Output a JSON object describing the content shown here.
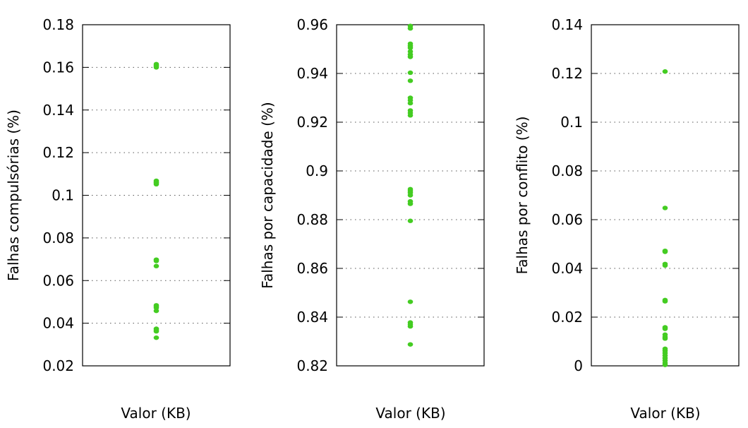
{
  "point_color": "#44cc22",
  "grid_color": "#555555",
  "chart_data": [
    {
      "type": "scatter",
      "xlabel": "Valor (KB)",
      "ylabel": "Falhas compulsórias (%)",
      "ylim": [
        0.02,
        0.18
      ],
      "yticks": [
        0.02,
        0.04,
        0.06,
        0.08,
        0.1,
        0.12,
        0.14,
        0.16,
        0.18
      ],
      "ytick_labels": [
        "0.02",
        "0.04",
        "0.06",
        "0.08",
        "0.1",
        "0.12",
        "0.14",
        "0.16",
        "0.18"
      ],
      "grid": "horizontal-dotted",
      "legend": "none",
      "series": [
        {
          "values": [
            0.1615,
            0.161,
            0.1605,
            0.16,
            0.1068,
            0.1062,
            0.1058,
            0.1052,
            0.0698,
            0.0692,
            0.0668,
            0.0484,
            0.0478,
            0.0472,
            0.0458,
            0.0374,
            0.0368,
            0.0362,
            0.0332
          ]
        }
      ]
    },
    {
      "type": "scatter",
      "xlabel": "Valor (KB)",
      "ylabel": "Falhas por capacidade (%)",
      "ylim": [
        0.82,
        0.96
      ],
      "yticks": [
        0.82,
        0.84,
        0.86,
        0.88,
        0.9,
        0.92,
        0.94,
        0.96
      ],
      "ytick_labels": [
        "0.82",
        "0.84",
        "0.86",
        "0.88",
        "0.9",
        "0.92",
        "0.94",
        "0.96"
      ],
      "grid": "horizontal-dotted",
      "legend": "none",
      "series": [
        {
          "values": [
            0.9595,
            0.9585,
            0.9522,
            0.9513,
            0.9505,
            0.949,
            0.9478,
            0.9468,
            0.9403,
            0.937,
            0.93,
            0.929,
            0.9278,
            0.9248,
            0.9238,
            0.9228,
            0.8925,
            0.8918,
            0.891,
            0.89,
            0.8875,
            0.8865,
            0.8795,
            0.8463,
            0.8378,
            0.837,
            0.8362,
            0.8288
          ]
        }
      ]
    },
    {
      "type": "scatter",
      "xlabel": "Valor (KB)",
      "ylabel": "Falhas por conflito (%)",
      "ylim": [
        0,
        0.14
      ],
      "yticks": [
        0,
        0.02,
        0.04,
        0.06,
        0.08,
        0.1,
        0.12,
        0.14
      ],
      "ytick_labels": [
        "0",
        "0.02",
        "0.04",
        "0.06",
        "0.08",
        "0.1",
        "0.12",
        "0.14"
      ],
      "grid": "horizontal-dotted",
      "legend": "none",
      "series": [
        {
          "values": [
            0.1208,
            0.0648,
            0.0472,
            0.0468,
            0.0418,
            0.0412,
            0.027,
            0.0265,
            0.0158,
            0.0152,
            0.0128,
            0.0118,
            0.0112,
            0.007,
            0.0062,
            0.0052,
            0.0042,
            0.0032,
            0.0022,
            0.0012,
            0.0004
          ]
        }
      ]
    }
  ]
}
